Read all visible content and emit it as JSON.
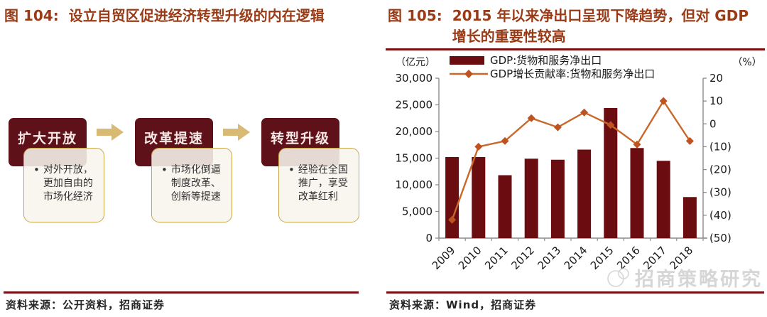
{
  "left_panel": {
    "figure_label": "图 104:",
    "title": "设立自贸区促进经济转型升级的内在逻辑",
    "flow": {
      "steps": [
        {
          "title": "扩大开放",
          "bullet": "对外开放，更加自由的市场化经济"
        },
        {
          "title": "改革提速",
          "bullet": "市场化倒逼制度改革、创新等提速"
        },
        {
          "title": "转型升级",
          "bullet": "经验在全国推广，享受改革红利"
        }
      ]
    },
    "source": "资料来源：公开资料，招商证券"
  },
  "right_panel": {
    "figure_label": "图 105:",
    "title": "2015 年以来净出口呈现下降趋势，但对 GDP 增长的重要性较高",
    "source": "资料来源：Wind，招商证券",
    "watermark": "招商策略研究"
  },
  "chart_data": {
    "type": "bar+line",
    "title": "2015 年以来净出口呈现下降趋势，但对 GDP 增长的重要性较高",
    "categories": [
      "2009",
      "2010",
      "2011",
      "2012",
      "2013",
      "2014",
      "2015",
      "2016",
      "2017",
      "2018"
    ],
    "series": [
      {
        "name": "GDP:货物和服务净出口",
        "type": "bar",
        "axis": "left",
        "color": "#6B0D10",
        "values": [
          15200,
          15200,
          11800,
          14900,
          14700,
          16600,
          24400,
          16900,
          14500,
          7700
        ]
      },
      {
        "name": "GDP增长贡献率:货物和服务净出口",
        "type": "line",
        "axis": "right",
        "color": "#C8682A",
        "marker_color": "#BC5320",
        "marker": "diamond",
        "values": [
          -42,
          -10,
          -7.5,
          2.5,
          -1.5,
          5,
          -0.5,
          -9,
          10,
          -7.5
        ]
      }
    ],
    "left_axis": {
      "label": "（亿元）",
      "min": 0,
      "max": 30000,
      "tick_values": [
        30000,
        25000,
        20000,
        15000,
        10000,
        5000,
        0
      ],
      "tick_labels": [
        "30,000",
        "25,000",
        "20,000",
        "15,000",
        "10,000",
        "5,000",
        "0"
      ]
    },
    "right_axis": {
      "label": "（%）",
      "min": -50,
      "max": 20,
      "tick_values": [
        20,
        10,
        0,
        -10,
        -20,
        -30,
        -40,
        -50
      ],
      "tick_labels": [
        "20",
        "10",
        "0",
        "(10)",
        "(20)",
        "(30)",
        "(40)",
        "(50)"
      ],
      "negative_color": "#FF0000"
    },
    "legend_position": "top",
    "grid": false
  },
  "colors": {
    "title": "#9A3B17",
    "rule": "#7A1014",
    "box": "#5E1118",
    "bar": "#6B0D10",
    "line": "#C8682A",
    "marker": "#BC5320",
    "arrow": "#D8BA74",
    "callout_border": "#C8A64F",
    "watermark": "#D6D6D6",
    "axis": "#8C8C8C",
    "negative_tick": "#FF0000"
  }
}
